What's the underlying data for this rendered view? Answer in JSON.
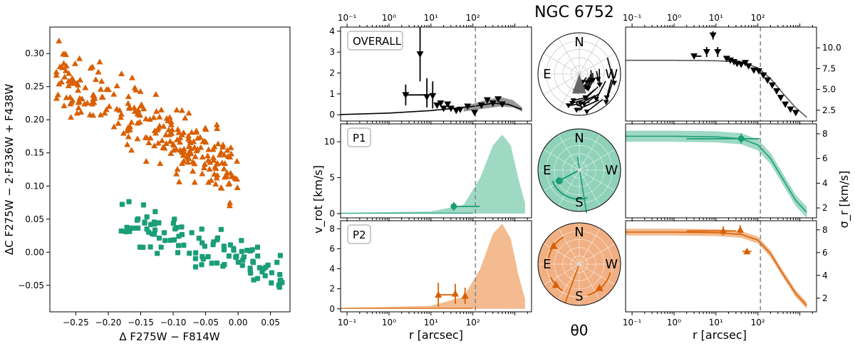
{
  "figure_title": "NGC 6752",
  "colors": {
    "overall": "#000000",
    "p1": "#1b9e77",
    "p1_fill": "#9fd9c4",
    "p2": "#d95f02",
    "p2_fill": "#f3bb8f",
    "line": "#666666",
    "vline": "#888888"
  },
  "labels": {
    "overall": "OVERALL",
    "p1": "P1",
    "p2": "P2",
    "vrot_ylabel": "v_rot [km/s]",
    "sigma_ylabel": "σ_r [km/s]",
    "r_xlabel": "r [arcsec]",
    "theta_label": "θ0",
    "compass": {
      "n": "N",
      "s": "S",
      "e": "E",
      "w": "W"
    },
    "cmd_ylabel": "ΔC F275W − 2·F336W + F438W",
    "cmd_xlabel": "Δ F275W − F814W"
  },
  "chart_data": [
    {
      "type": "scatter",
      "title": "",
      "xlabel": "Δ F275W−F814W",
      "ylabel": "ΔC F275W−2·F336W+F438W",
      "xlim": [
        -0.29,
        0.08
      ],
      "ylim": [
        -0.09,
        0.34
      ],
      "xticks": [
        -0.25,
        -0.2,
        -0.15,
        -0.1,
        -0.05,
        0.0,
        0.05
      ],
      "xtick_labels": [
        "−0.25",
        "−0.20",
        "−0.15",
        "−0.10",
        "−0.05",
        "0.00",
        "0.05"
      ],
      "yticks": [
        -0.05,
        0.0,
        0.05,
        0.1,
        0.15,
        0.2,
        0.25,
        0.3
      ],
      "ytick_labels": [
        "−0.05",
        "0.00",
        "0.05",
        "0.10",
        "0.15",
        "0.20",
        "0.25",
        "0.30"
      ],
      "series": [
        {
          "name": "P2",
          "marker": "triangle",
          "x_range": [
            -0.28,
            0.0
          ],
          "trend": [
            [
              -0.27,
              0.27
            ],
            [
              -0.2,
              0.23
            ],
            [
              -0.12,
              0.18
            ],
            [
              -0.05,
              0.14
            ],
            [
              0.0,
              0.12
            ]
          ],
          "spread": 0.035,
          "count": 260
        },
        {
          "name": "P1",
          "marker": "square",
          "x_range": [
            -0.18,
            0.07
          ],
          "trend": [
            [
              -0.18,
              0.045
            ],
            [
              -0.1,
              0.02
            ],
            [
              0.0,
              -0.005
            ],
            [
              0.07,
              -0.04
            ]
          ],
          "spread": 0.022,
          "count": 110
        }
      ]
    },
    {
      "type": "line",
      "panel": "OVERALL",
      "xscale": "log",
      "xlim": [
        0.07,
        2500
      ],
      "ylim": [
        -0.3,
        4.2
      ],
      "yticks": [
        0,
        1,
        2,
        3,
        4
      ],
      "ytick_labels": [
        "0",
        "1",
        "2",
        "3",
        "4"
      ],
      "top_xticks": [
        0.1,
        1,
        10,
        100
      ],
      "top_xtick_labels": [
        "10⁻¹",
        "10⁰",
        "10¹",
        "10²"
      ],
      "vline": 115,
      "model": {
        "x": [
          0.1,
          1,
          10,
          100,
          300,
          700,
          1500
        ],
        "y": [
          0.02,
          0.08,
          0.2,
          0.4,
          0.55,
          0.5,
          0.25
        ]
      },
      "band": {
        "x": [
          60,
          200,
          450,
          900,
          1500
        ],
        "lo": [
          0.15,
          0.3,
          0.4,
          0.35,
          0.15
        ],
        "hi": [
          0.4,
          0.7,
          0.85,
          0.7,
          0.35
        ]
      },
      "points": [
        {
          "x": 2.5,
          "y": 0.95,
          "xerr": [
            0.3,
            6
          ],
          "yerr": [
            0.5,
            0.5
          ]
        },
        {
          "x": 5.5,
          "y": 2.9,
          "yerr": [
            1.3,
            1.3
          ]
        },
        {
          "x": 8,
          "y": 0.85,
          "yerr": [
            0.5,
            0.9
          ]
        },
        {
          "x": 11,
          "y": 0.9,
          "yerr": [
            0.6,
            0.7
          ]
        },
        {
          "x": 14,
          "y": 0.45
        },
        {
          "x": 17,
          "y": 0.55
        },
        {
          "x": 20,
          "y": 0.3
        },
        {
          "x": 25,
          "y": 0.5
        },
        {
          "x": 30,
          "y": 0.3
        },
        {
          "x": 40,
          "y": 0.2
        },
        {
          "x": 50,
          "y": 0.25
        },
        {
          "x": 75,
          "y": 0.4
        },
        {
          "x": 110,
          "y": 0.1
        },
        {
          "x": 160,
          "y": 0.45
        },
        {
          "x": 220,
          "y": 0.7
        },
        {
          "x": 300,
          "y": 0.55
        },
        {
          "x": 400,
          "y": 0.75
        },
        {
          "x": 500,
          "y": 0.5
        }
      ]
    },
    {
      "type": "area",
      "panel": "P1",
      "xscale": "log",
      "xlim": [
        0.07,
        2500
      ],
      "ylim": [
        -0.6,
        12.5
      ],
      "yticks": [
        0,
        5,
        10
      ],
      "ytick_labels": [
        "0",
        "5",
        "10"
      ],
      "vline": 115,
      "envelope": {
        "x": [
          0.1,
          10,
          60,
          150,
          300,
          500,
          800,
          1200,
          1800
        ],
        "y": [
          0.1,
          0.3,
          1.2,
          5,
          9.5,
          11,
          9.5,
          5,
          1.2
        ]
      },
      "points": [
        {
          "x": 35,
          "y": 1.0,
          "xerr": [
            1,
            110
          ],
          "yerr": [
            0.6,
            0.6
          ]
        }
      ]
    },
    {
      "type": "area",
      "panel": "P2",
      "xscale": "log",
      "xlim": [
        0.07,
        2500
      ],
      "ylim": [
        -0.3,
        8.8
      ],
      "yticks": [
        0,
        2,
        4,
        6,
        8
      ],
      "ytick_labels": [
        "0",
        "2",
        "4",
        "6",
        "8"
      ],
      "bottom_xticks": [
        0.1,
        1,
        10,
        100
      ],
      "bottom_xtick_labels": [
        "10⁻¹",
        "10⁰",
        "10¹",
        "10²"
      ],
      "vline": 115,
      "envelope": {
        "x": [
          0.1,
          10,
          60,
          150,
          300,
          500,
          800,
          1200,
          1800
        ],
        "y": [
          0.1,
          0.3,
          1.2,
          4,
          7.5,
          8.5,
          7,
          3.5,
          0.8
        ]
      },
      "points": [
        {
          "x": 15,
          "y": 1.4,
          "xerr": [
            1.5,
            20
          ],
          "yerr": [
            1.2,
            1.2
          ]
        },
        {
          "x": 38,
          "y": 1.5,
          "yerr": [
            1.0,
            1.0
          ]
        },
        {
          "x": 65,
          "y": 1.3,
          "yerr": [
            0.8,
            0.8
          ]
        }
      ]
    },
    {
      "type": "line",
      "panel": "sigma OVERALL",
      "xscale": "log",
      "xlim": [
        0.07,
        2500
      ],
      "ylim": [
        1.2,
        12.5
      ],
      "yticks": [
        2.5,
        5.0,
        7.5,
        10.0
      ],
      "ytick_labels": [
        "2.5",
        "5.0",
        "7.5",
        "10.0"
      ],
      "top_xticks": [
        0.1,
        1,
        10,
        100
      ],
      "top_xtick_labels": [
        "10⁻¹",
        "10⁰",
        "10¹",
        "10²"
      ],
      "vline": 115,
      "model": {
        "x": [
          0.1,
          1,
          10,
          40,
          100,
          200,
          400,
          800,
          1500
        ],
        "y": [
          8.5,
          8.5,
          8.45,
          8.3,
          7.6,
          6.3,
          4.5,
          2.8,
          1.6
        ]
      },
      "points": [
        {
          "x": 3,
          "y": 9.0,
          "xerr": [
            0.15,
            1.5
          ]
        },
        {
          "x": 6,
          "y": 9.5,
          "yerr": [
            0.6,
            0.6
          ]
        },
        {
          "x": 8.5,
          "y": 11.5,
          "yerr": [
            0.5,
            0.5
          ]
        },
        {
          "x": 11,
          "y": 9.5,
          "yerr": [
            0.6,
            0.6
          ]
        },
        {
          "x": 18,
          "y": 8.7
        },
        {
          "x": 22,
          "y": 8.5
        },
        {
          "x": 27,
          "y": 8.3
        },
        {
          "x": 32,
          "y": 8.1
        },
        {
          "x": 40,
          "y": 8.0
        },
        {
          "x": 50,
          "y": 8.2
        },
        {
          "x": 60,
          "y": 7.8
        },
        {
          "x": 80,
          "y": 7.3
        },
        {
          "x": 105,
          "y": 7.2
        },
        {
          "x": 135,
          "y": 6.7
        },
        {
          "x": 170,
          "y": 6.1
        },
        {
          "x": 220,
          "y": 5.5
        },
        {
          "x": 280,
          "y": 4.8
        },
        {
          "x": 350,
          "y": 4.0
        },
        {
          "x": 450,
          "y": 3.2
        },
        {
          "x": 600,
          "y": 2.6
        },
        {
          "x": 800,
          "y": 2.2
        }
      ]
    },
    {
      "type": "line",
      "panel": "sigma P1",
      "xscale": "log",
      "xlim": [
        0.07,
        2500
      ],
      "ylim": [
        1.2,
        8.8
      ],
      "yticks": [
        2,
        4,
        6,
        8
      ],
      "ytick_labels": [
        "2",
        "4",
        "6",
        "8"
      ],
      "vline": 115,
      "model": {
        "x": [
          0.1,
          1,
          10,
          40,
          100,
          200,
          400,
          800,
          1500
        ],
        "y": [
          7.8,
          7.8,
          7.75,
          7.6,
          7.1,
          6.0,
          4.3,
          2.6,
          1.6
        ]
      },
      "band_halfwidth": 0.45,
      "points": [
        {
          "x": 40,
          "y": 7.6,
          "xerr": [
            38,
            70
          ],
          "yerr": [
            0.4,
            0.4
          ]
        }
      ]
    },
    {
      "type": "line",
      "panel": "sigma P2",
      "xscale": "log",
      "xlim": [
        0.07,
        2500
      ],
      "ylim": [
        0.8,
        8.8
      ],
      "yticks": [
        2,
        4,
        6,
        8
      ],
      "ytick_labels": [
        "2",
        "4",
        "6",
        "8"
      ],
      "bottom_xticks": [
        0.1,
        1,
        10,
        100
      ],
      "bottom_xtick_labels": [
        "10⁻¹",
        "10⁰",
        "10¹",
        "10²"
      ],
      "vline": 115,
      "model": {
        "x": [
          0.1,
          1,
          10,
          40,
          100,
          200,
          400,
          800,
          1500
        ],
        "y": [
          7.8,
          7.8,
          7.75,
          7.6,
          7.1,
          5.9,
          4.1,
          2.4,
          1.3
        ]
      },
      "band_halfwidth": 0.3,
      "points": [
        {
          "x": 15,
          "y": 7.9,
          "xerr": [
            13,
            15
          ],
          "yerr": [
            0.4,
            0.4
          ]
        },
        {
          "x": 38,
          "y": 8.0,
          "yerr": [
            0.4,
            0.4
          ]
        },
        {
          "x": 55,
          "y": 6.1,
          "xerr": [
            12,
            15
          ]
        }
      ]
    },
    {
      "type": "polar",
      "panels": [
        {
          "name": "OVERALL",
          "wedge": {
            "from": 160,
            "to": 260,
            "scale": 0.55
          }
        },
        {
          "name": "P1",
          "arc": {
            "from": 112,
            "to": 198,
            "r": 0.7
          },
          "point_angle": 118,
          "point_r": 0.55,
          "tick_angle": 190
        },
        {
          "name": "P2",
          "arcs": [
            {
              "from": 30,
              "to": 80,
              "r": 0.76
            },
            {
              "from": 115,
              "to": 150,
              "r": 0.76
            },
            {
              "from": 195,
              "to": 255,
              "r": 0.78
            }
          ],
          "point_angles": [
            55,
            132,
            220
          ],
          "tick_angle": 160
        }
      ]
    }
  ]
}
